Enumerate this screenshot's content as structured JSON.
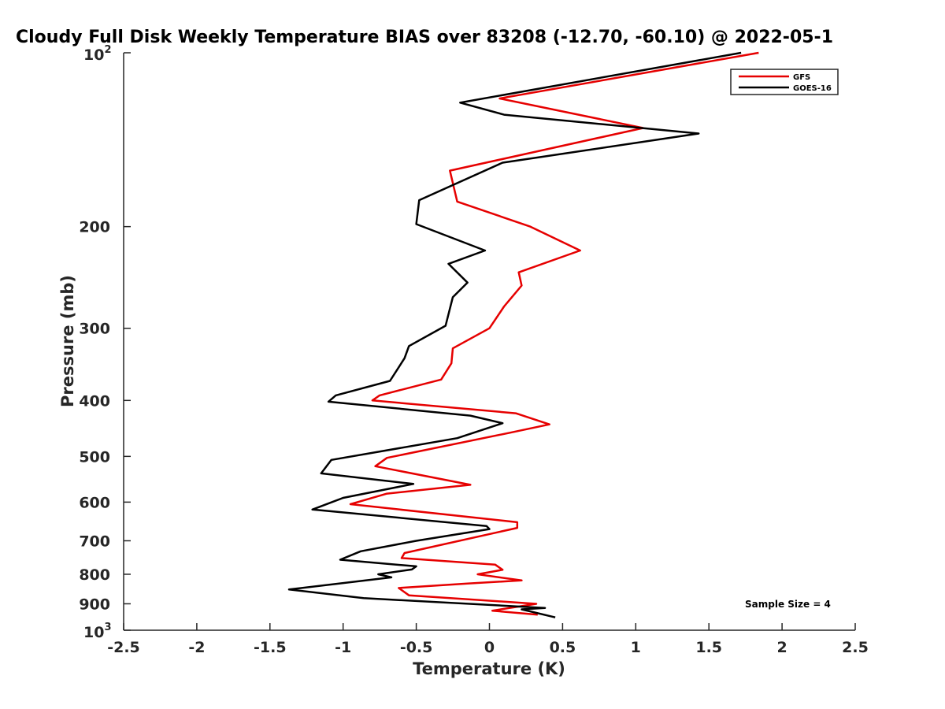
{
  "chart_data": {
    "type": "line",
    "title": "Cloudy Full Disk Weekly Temperature BIAS over 83208 (-12.70, -60.10) @ 2022-05-1",
    "xlabel": "Temperature (K)",
    "ylabel": "Pressure (mb)",
    "xlim": [
      -2.5,
      2.5
    ],
    "ylim": [
      100,
      1000
    ],
    "yscale": "log",
    "yreversed": true,
    "grid": false,
    "x_ticks": [
      -2.5,
      -2,
      -1.5,
      -1,
      -0.5,
      0,
      0.5,
      1,
      1.5,
      2,
      2.5
    ],
    "x_tick_labels": [
      "-2.5",
      "-2",
      "-1.5",
      "-1",
      "-0.5",
      "0",
      "0.5",
      "1",
      "1.5",
      "2",
      "2.5"
    ],
    "y_ticks": [
      200,
      300,
      400,
      500,
      600,
      700,
      800,
      900
    ],
    "y_tick_labels": [
      "200",
      "300",
      "400",
      "500",
      "600",
      "700",
      "800",
      "900"
    ],
    "y_minmax_labels": {
      "min_base": "10",
      "min_exp": "2",
      "max_base": "10",
      "max_exp": "3"
    },
    "legend_position": "top-right",
    "annotation": "Sample Size = 4",
    "series": [
      {
        "name": "GFS",
        "color": "#e60000",
        "x": [
          1.84,
          0.07,
          1.05,
          -0.27,
          -0.22,
          0.28,
          0.62,
          0.2,
          0.22,
          0.1,
          0.0,
          -0.25,
          -0.26,
          -0.33,
          -0.75,
          -0.8,
          0.18,
          0.41,
          0.14,
          -0.7,
          -0.78,
          -0.13,
          -0.7,
          -0.95,
          0.19,
          0.19,
          -0.58,
          -0.6,
          0.04,
          0.09,
          -0.08,
          0.22,
          -0.15,
          -0.62,
          -0.55,
          0.32,
          0.02,
          0.33
        ],
        "y": [
          100,
          120,
          135,
          160,
          181,
          200,
          220,
          240,
          253,
          275,
          300,
          325,
          345,
          368,
          392,
          400,
          421,
          440,
          455,
          503,
          520,
          560,
          580,
          605,
          650,
          665,
          735,
          750,
          770,
          786,
          800,
          820,
          830,
          845,
          870,
          900,
          925,
          940
        ]
      },
      {
        "name": "GOES-16",
        "color": "#000000",
        "x": [
          1.72,
          -0.2,
          0.1,
          1.43,
          0.09,
          -0.48,
          -0.5,
          -0.03,
          -0.28,
          -0.15,
          -0.25,
          -0.3,
          -0.55,
          -0.58,
          -0.68,
          -1.05,
          -1.1,
          -0.13,
          0.09,
          -0.22,
          -1.08,
          -1.15,
          -0.52,
          -1.0,
          -1.21,
          -0.02,
          0.0,
          -0.5,
          -0.88,
          -1.02,
          -0.5,
          -0.53,
          -0.76,
          -0.67,
          -1.37,
          -0.86,
          0.38,
          0.22,
          0.45
        ],
        "y": [
          100,
          122,
          128,
          138,
          155,
          180,
          198,
          220,
          232,
          250,
          265,
          297,
          322,
          338,
          370,
          392,
          402,
          425,
          438,
          465,
          507,
          535,
          558,
          590,
          618,
          660,
          668,
          700,
          730,
          755,
          775,
          785,
          800,
          810,
          850,
          880,
          915,
          920,
          950
        ]
      }
    ]
  }
}
